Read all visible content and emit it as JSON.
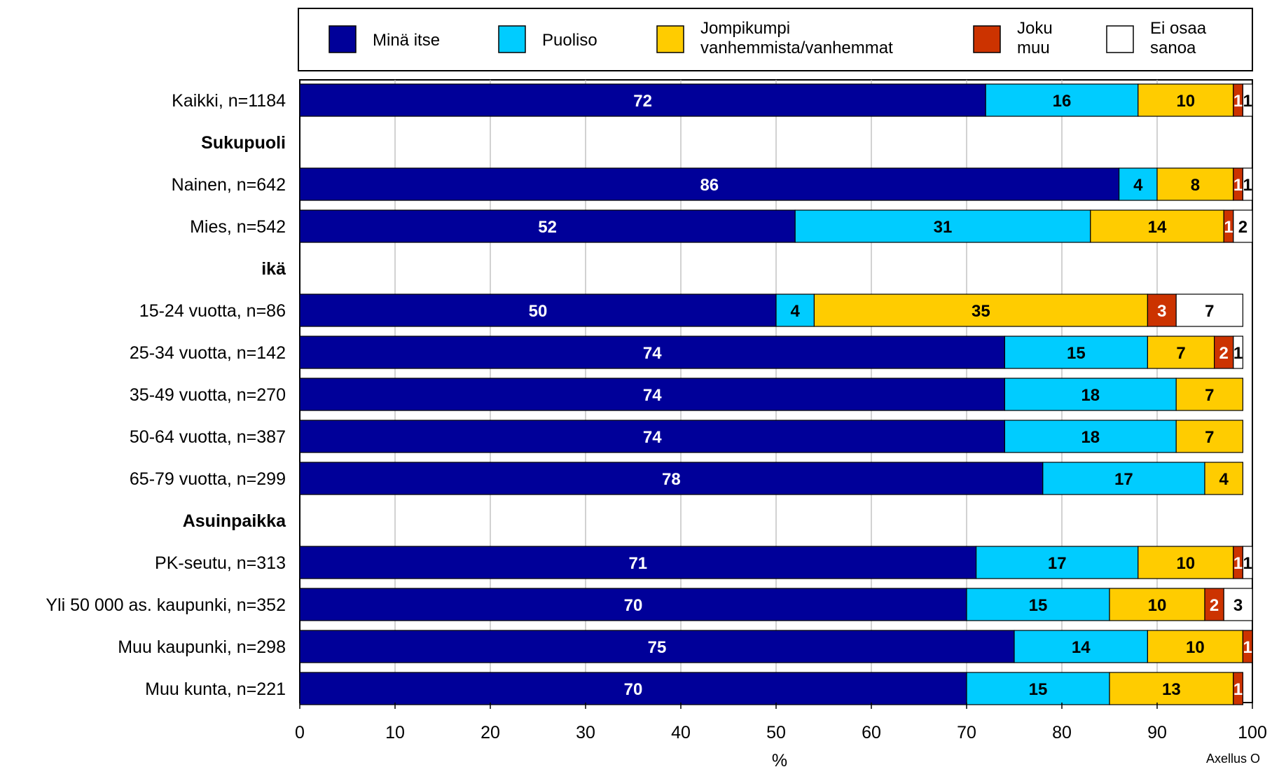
{
  "chart_data": {
    "type": "bar",
    "orientation": "horizontal",
    "stacked": true,
    "xlabel": "%",
    "xlim": [
      0,
      100
    ],
    "xticks": [
      0,
      10,
      20,
      30,
      40,
      50,
      60,
      70,
      80,
      90,
      100
    ],
    "grid": true,
    "legend_position": "top",
    "watermark": "Axellus O",
    "series": [
      {
        "name": "Minä itse",
        "legend_lines": [
          "Minä itse"
        ],
        "color": "#000099",
        "label_color": "#ffffff"
      },
      {
        "name": "Puoliso",
        "legend_lines": [
          "Puoliso"
        ],
        "color": "#00ccff",
        "label_color": "#000000"
      },
      {
        "name": "Jompikumpi vanhemmista/vanhemmat",
        "legend_lines": [
          "Jompikumpi",
          "vanhemmista/vanhemmat"
        ],
        "color": "#ffcc00",
        "label_color": "#000000"
      },
      {
        "name": "Joku muu",
        "legend_lines": [
          "Joku",
          "muu"
        ],
        "color": "#cc3300",
        "label_color": "#ffffff"
      },
      {
        "name": "Ei osaa sanoa",
        "legend_lines": [
          "Ei osaa",
          "sanoa"
        ],
        "color": "#ffffff",
        "label_color": "#000000"
      }
    ],
    "rows": [
      {
        "label": "Kaikki, n=1184",
        "header": false,
        "values": [
          72,
          16,
          10,
          1,
          1
        ],
        "labels": [
          "72",
          "16",
          "10",
          "1",
          "1"
        ]
      },
      {
        "label": "Sukupuoli",
        "header": true
      },
      {
        "label": "Nainen, n=642",
        "header": false,
        "values": [
          86,
          4,
          8,
          1,
          1
        ],
        "labels": [
          "86",
          "4",
          "8",
          "1",
          "1"
        ]
      },
      {
        "label": "Mies, n=542",
        "header": false,
        "values": [
          52,
          31,
          14,
          1,
          2
        ],
        "labels": [
          "52",
          "31",
          "14",
          "1",
          "2"
        ]
      },
      {
        "label": "ikä",
        "header": true
      },
      {
        "label": "15-24 vuotta, n=86",
        "header": false,
        "values": [
          50,
          4,
          35,
          3,
          7
        ],
        "labels": [
          "50",
          "4",
          "35",
          "3",
          "7"
        ]
      },
      {
        "label": "25-34 vuotta, n=142",
        "header": false,
        "values": [
          74,
          15,
          7,
          2,
          1
        ],
        "labels": [
          "74",
          "15",
          "7",
          "2",
          "1"
        ]
      },
      {
        "label": "35-49 vuotta, n=270",
        "header": false,
        "values": [
          74,
          18,
          7
        ],
        "labels": [
          "74",
          "18",
          "7"
        ]
      },
      {
        "label": "50-64 vuotta, n=387",
        "header": false,
        "values": [
          74,
          18,
          7
        ],
        "labels": [
          "74",
          "18",
          "7"
        ]
      },
      {
        "label": "65-79 vuotta, n=299",
        "header": false,
        "values": [
          78,
          17,
          4
        ],
        "labels": [
          "78",
          "17",
          "4"
        ]
      },
      {
        "label": "Asuinpaikka",
        "header": true
      },
      {
        "label": "PK-seutu, n=313",
        "header": false,
        "values": [
          71,
          17,
          10,
          1,
          1
        ],
        "labels": [
          "71",
          "17",
          "10",
          "1",
          "1"
        ]
      },
      {
        "label": "Yli 50 000 as. kaupunki, n=352",
        "header": false,
        "values": [
          70,
          15,
          10,
          2,
          3
        ],
        "labels": [
          "70",
          "15",
          "10",
          "2",
          "3"
        ]
      },
      {
        "label": "Muu kaupunki, n=298",
        "header": false,
        "values": [
          75,
          14,
          10,
          1
        ],
        "labels": [
          "75",
          "14",
          "10",
          "1"
        ]
      },
      {
        "label": "Muu kunta, n=221",
        "header": false,
        "values": [
          70,
          15,
          13,
          1
        ],
        "labels": [
          "70",
          "15",
          "13",
          "1"
        ]
      }
    ]
  }
}
